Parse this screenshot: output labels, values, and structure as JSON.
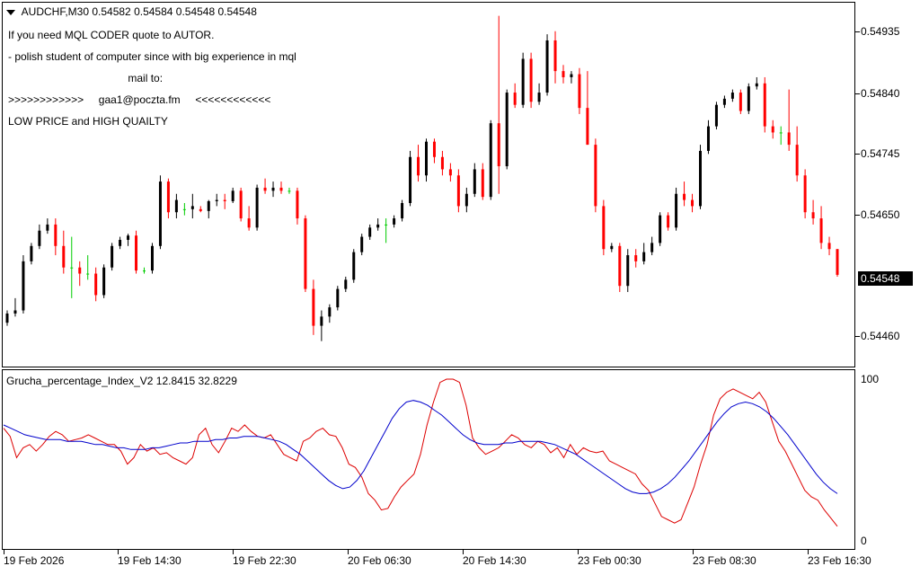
{
  "main": {
    "title": "AUDCHF,M30  0.54582 0.54584 0.54548 0.54548",
    "overlay": [
      "If you need MQL CODER quote to AUTOR.",
      "- polish student of computer since with big experience in mql",
      "                                        mail to:",
      ">>>>>>>>>>>>     gaa1@poczta.fm     <<<<<<<<<<<<",
      "LOW PRICE and HIGH QUAILTY"
    ],
    "price_labels": [
      "0.54935",
      "0.54840",
      "0.54745",
      "0.54650",
      "0.54460"
    ],
    "current_price": "0.54548"
  },
  "indicator": {
    "title": "Grucha_percentage_Index_V2 12.8415 32.8229",
    "scale_labels": [
      "100",
      "0"
    ]
  },
  "time_labels": [
    "19 Feb 2026",
    "19 Feb 14:30",
    "19 Feb 22:30",
    "20 Feb 06:30",
    "20 Feb 14:30",
    "23 Feb 00:30",
    "23 Feb 08:30",
    "23 Feb 16:30"
  ],
  "colors": {
    "bull": "#000000",
    "bear": "#ff0000",
    "doji": "#00cc00",
    "signal": "#0000cc",
    "index": "#dd0000"
  },
  "chart_data": [
    {
      "type": "candlestick",
      "title": "AUDCHF,M30",
      "ylim": [
        0.544,
        0.5499
      ],
      "candles": [
        [
          0.5447,
          0.5449,
          0.54465,
          0.54485
        ],
        [
          0.54485,
          0.5451,
          0.5448,
          0.5449
        ],
        [
          0.5449,
          0.5458,
          0.54485,
          0.5457
        ],
        [
          0.5457,
          0.546,
          0.54565,
          0.54595
        ],
        [
          0.54595,
          0.5463,
          0.5459,
          0.5462
        ],
        [
          0.5462,
          0.5464,
          0.54615,
          0.5463
        ],
        [
          0.5463,
          0.5464,
          0.5458,
          0.54595
        ],
        [
          0.54595,
          0.5462,
          0.5455,
          0.5456
        ],
        [
          0.5456,
          0.5461,
          0.5451,
          0.5456
        ],
        [
          0.5456,
          0.5457,
          0.5453,
          0.5455
        ],
        [
          0.5455,
          0.5458,
          0.5454,
          0.5455
        ],
        [
          0.5455,
          0.5456,
          0.54505,
          0.54515
        ],
        [
          0.54515,
          0.54565,
          0.5451,
          0.5456
        ],
        [
          0.5456,
          0.546,
          0.54555,
          0.54595
        ],
        [
          0.54595,
          0.5461,
          0.5459,
          0.54605
        ],
        [
          0.54605,
          0.54615,
          0.54595,
          0.54612
        ],
        [
          0.54612,
          0.5462,
          0.5455,
          0.54555
        ],
        [
          0.54555,
          0.5456,
          0.5455,
          0.54555
        ],
        [
          0.54555,
          0.546,
          0.5455,
          0.54595
        ],
        [
          0.54595,
          0.5471,
          0.5459,
          0.547
        ],
        [
          0.547,
          0.54705,
          0.5464,
          0.5465
        ],
        [
          0.5465,
          0.5468,
          0.5464,
          0.5467
        ],
        [
          0.54655,
          0.54665,
          0.54645,
          0.54655
        ],
        [
          0.54655,
          0.5468,
          0.5464,
          0.5466
        ],
        [
          0.54655,
          0.5466,
          0.5465,
          0.54652
        ],
        [
          0.54652,
          0.5467,
          0.5464,
          0.54668
        ],
        [
          0.54668,
          0.5468,
          0.5466,
          0.5467
        ],
        [
          0.5467,
          0.5468,
          0.54655,
          0.54668
        ],
        [
          0.54668,
          0.5469,
          0.54665,
          0.54685
        ],
        [
          0.54685,
          0.5469,
          0.54635,
          0.5464
        ],
        [
          0.5464,
          0.5466,
          0.5462,
          0.54625
        ],
        [
          0.54625,
          0.54695,
          0.5462,
          0.5469
        ],
        [
          0.5469,
          0.54705,
          0.5468,
          0.54685
        ],
        [
          0.54685,
          0.547,
          0.54675,
          0.5469
        ],
        [
          0.5469,
          0.547,
          0.5468,
          0.54685
        ],
        [
          0.54685,
          0.5469,
          0.5468,
          0.54685
        ],
        [
          0.54685,
          0.5469,
          0.5463,
          0.5464
        ],
        [
          0.5464,
          0.54645,
          0.5452,
          0.54525
        ],
        [
          0.54525,
          0.5454,
          0.5445,
          0.54465
        ],
        [
          0.54465,
          0.5449,
          0.5444,
          0.5448
        ],
        [
          0.5448,
          0.545,
          0.5447,
          0.54495
        ],
        [
          0.54495,
          0.5453,
          0.5449,
          0.54525
        ],
        [
          0.54525,
          0.54545,
          0.5452,
          0.5454
        ],
        [
          0.5454,
          0.5459,
          0.54535,
          0.54585
        ],
        [
          0.54585,
          0.54615,
          0.5458,
          0.5461
        ],
        [
          0.5461,
          0.5463,
          0.54605,
          0.54625
        ],
        [
          0.54625,
          0.5464,
          0.5462,
          0.5463
        ],
        [
          0.5463,
          0.5464,
          0.546,
          0.5463
        ],
        [
          0.5463,
          0.54645,
          0.54625,
          0.5464
        ],
        [
          0.5464,
          0.5467,
          0.54635,
          0.54665
        ],
        [
          0.54665,
          0.5475,
          0.5466,
          0.5474
        ],
        [
          0.5474,
          0.5476,
          0.547,
          0.5471
        ],
        [
          0.5471,
          0.5477,
          0.547,
          0.54765
        ],
        [
          0.54765,
          0.5477,
          0.5473,
          0.5474
        ],
        [
          0.5474,
          0.5475,
          0.5471,
          0.5472
        ],
        [
          0.5472,
          0.5473,
          0.547,
          0.5471
        ],
        [
          0.5471,
          0.5472,
          0.5465,
          0.5466
        ],
        [
          0.5466,
          0.5469,
          0.5465,
          0.5468
        ],
        [
          0.5468,
          0.5473,
          0.54675,
          0.5472
        ],
        [
          0.5472,
          0.5473,
          0.5467,
          0.54675
        ],
        [
          0.54675,
          0.548,
          0.5467,
          0.54795
        ],
        [
          0.54795,
          0.5497,
          0.5468,
          0.54725
        ],
        [
          0.54725,
          0.5485,
          0.5472,
          0.54845
        ],
        [
          0.54845,
          0.5486,
          0.5482,
          0.54825
        ],
        [
          0.54825,
          0.5491,
          0.5482,
          0.549
        ],
        [
          0.549,
          0.5491,
          0.5482,
          0.5483
        ],
        [
          0.5483,
          0.5486,
          0.54825,
          0.54845
        ],
        [
          0.54845,
          0.5494,
          0.5484,
          0.5493
        ],
        [
          0.5493,
          0.54945,
          0.5486,
          0.5488
        ],
        [
          0.5488,
          0.5489,
          0.5486,
          0.5487
        ],
        [
          0.5487,
          0.5488,
          0.5486,
          0.54875
        ],
        [
          0.54875,
          0.54885,
          0.5481,
          0.5482
        ],
        [
          0.5482,
          0.5488,
          0.5476,
          0.5476
        ],
        [
          0.5476,
          0.5477,
          0.5465,
          0.5466
        ],
        [
          0.5466,
          0.5467,
          0.5458,
          0.5459
        ],
        [
          0.5459,
          0.546,
          0.54585,
          0.54595
        ],
        [
          0.54595,
          0.546,
          0.5452,
          0.5453
        ],
        [
          0.5453,
          0.5459,
          0.5452,
          0.5458
        ],
        [
          0.5458,
          0.5459,
          0.5456,
          0.5457
        ],
        [
          0.5457,
          0.546,
          0.54565,
          0.54585
        ],
        [
          0.54585,
          0.5461,
          0.5458,
          0.546
        ],
        [
          0.546,
          0.5465,
          0.54595,
          0.54645
        ],
        [
          0.54645,
          0.5465,
          0.5462,
          0.54625
        ],
        [
          0.54625,
          0.5469,
          0.5462,
          0.5468
        ],
        [
          0.5468,
          0.547,
          0.5466,
          0.5467
        ],
        [
          0.5467,
          0.5468,
          0.5465,
          0.5466
        ],
        [
          0.5466,
          0.5476,
          0.54655,
          0.5475
        ],
        [
          0.5475,
          0.548,
          0.54745,
          0.5479
        ],
        [
          0.5479,
          0.5483,
          0.54785,
          0.54825
        ],
        [
          0.54825,
          0.5484,
          0.5482,
          0.54835
        ],
        [
          0.54835,
          0.5485,
          0.5483,
          0.54845
        ],
        [
          0.54845,
          0.5485,
          0.5481,
          0.54815
        ],
        [
          0.54815,
          0.5486,
          0.5481,
          0.54855
        ],
        [
          0.54855,
          0.5487,
          0.5485,
          0.5486
        ],
        [
          0.5486,
          0.5487,
          0.5478,
          0.5479
        ],
        [
          0.5479,
          0.548,
          0.5477,
          0.5478
        ],
        [
          0.5478,
          0.5479,
          0.5476,
          0.5478
        ],
        [
          0.5478,
          0.5485,
          0.5475,
          0.5476
        ],
        [
          0.5476,
          0.5479,
          0.547,
          0.5471
        ],
        [
          0.5471,
          0.5472,
          0.5464,
          0.5465
        ],
        [
          0.5465,
          0.5467,
          0.5463,
          0.5464
        ],
        [
          0.5464,
          0.5466,
          0.5459,
          0.546
        ],
        [
          0.546,
          0.5461,
          0.5458,
          0.5459
        ],
        [
          0.5459,
          0.5459,
          0.54545,
          0.54548
        ]
      ]
    },
    {
      "type": "line",
      "title": "Grucha_percentage_Index_V2",
      "ylim": [
        0,
        100
      ],
      "series": [
        {
          "values": [
            70,
            65,
            52,
            58,
            60,
            56,
            60,
            65,
            68,
            66,
            62,
            63,
            64,
            66,
            64,
            62,
            60,
            60,
            56,
            48,
            52,
            60,
            56,
            58,
            54,
            55,
            52,
            50,
            48,
            52,
            66,
            70,
            60,
            55,
            62,
            70,
            68,
            72,
            68,
            65,
            64,
            66,
            60,
            54,
            52,
            50,
            62,
            64,
            68,
            70,
            66,
            65,
            58,
            48,
            46,
            40,
            30,
            26,
            20,
            21,
            28,
            34,
            38,
            42,
            54,
            72,
            86,
            98,
            100,
            100,
            98,
            84,
            64,
            58,
            54,
            56,
            58,
            62,
            66,
            64,
            60,
            58,
            62,
            60,
            55,
            58,
            52,
            60,
            54,
            58,
            56,
            55,
            56,
            50,
            48,
            46,
            44,
            42,
            36,
            32,
            24,
            16,
            14,
            12,
            14,
            24,
            34,
            48,
            60,
            78,
            88,
            92,
            94,
            92,
            90,
            88,
            92,
            86,
            74,
            62,
            56,
            48,
            40,
            32,
            28,
            26,
            20,
            15,
            10
          ]
        },
        {
          "values": [
            72,
            70,
            68,
            66,
            65,
            64,
            63,
            63,
            63,
            62,
            62,
            62,
            61,
            60,
            60,
            59,
            58,
            58,
            57,
            57,
            57,
            58,
            58,
            59,
            60,
            61,
            61,
            62,
            62,
            62,
            63,
            63,
            64,
            64,
            65,
            65,
            65,
            64,
            63,
            62,
            60,
            57,
            54,
            50,
            46,
            42,
            38,
            35,
            33,
            34,
            38,
            44,
            52,
            60,
            68,
            76,
            82,
            86,
            87,
            86,
            84,
            81,
            78,
            74,
            70,
            66,
            63,
            61,
            60,
            60,
            60,
            61,
            61,
            62,
            62,
            62,
            62,
            61,
            60,
            58,
            56,
            54,
            51,
            48,
            45,
            42,
            39,
            36,
            33,
            31,
            30,
            30,
            31,
            33,
            36,
            40,
            45,
            50,
            56,
            62,
            68,
            74,
            79,
            83,
            85,
            86,
            85,
            83,
            80,
            76,
            71,
            66,
            60,
            54,
            48,
            42,
            37,
            33,
            30
          ]
        }
      ]
    }
  ]
}
